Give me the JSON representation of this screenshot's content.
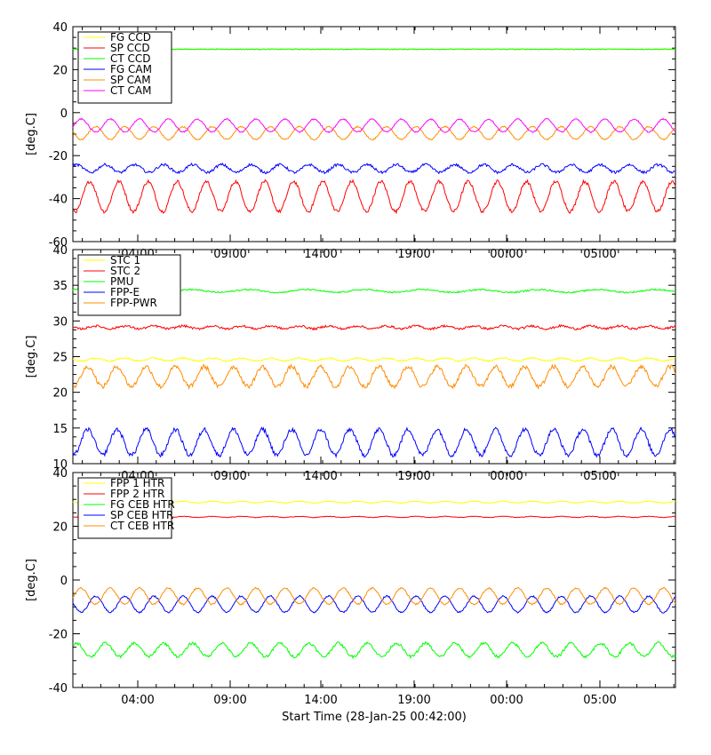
{
  "x_axis_title": "Start Time (28-Jan-25 00:42:00)",
  "chart_data": [
    {
      "type": "line",
      "ylabel": "[deg.C]",
      "ylim": [
        -60,
        40
      ],
      "yticks": [
        40,
        20,
        0,
        -20,
        -40,
        -60
      ],
      "xticks": [
        "04:00",
        "09:00",
        "14:00",
        "19:00",
        "00:00",
        "05:00"
      ],
      "legend_position": "top-left",
      "series": [
        {
          "name": "FG CCD",
          "color": "#ffff00",
          "mean": 29.5,
          "amp": 0,
          "period": 1.5,
          "phase": 0,
          "noise": 0.2
        },
        {
          "name": "SP CCD",
          "color": "#ff0000",
          "mean": -39,
          "amp": 7,
          "period": 1.5,
          "phase": 0.3,
          "noise": 0.8
        },
        {
          "name": "CT CCD",
          "color": "#00ff00",
          "mean": 29.5,
          "amp": 0,
          "period": 1.5,
          "phase": 0,
          "noise": 0.2
        },
        {
          "name": "FG CAM",
          "color": "#0000ff",
          "mean": -26,
          "amp": 1.8,
          "period": 1.5,
          "phase": 1.0,
          "noise": 0.6
        },
        {
          "name": "SP CAM",
          "color": "#ff8c00",
          "mean": -9.5,
          "amp": 3,
          "period": 1.5,
          "phase": 0.0,
          "noise": 0.3
        },
        {
          "name": "CT CAM",
          "color": "#ff00ff",
          "mean": -6,
          "amp": 3,
          "period": 1.5,
          "phase": 0.75,
          "noise": 0.3
        }
      ]
    },
    {
      "type": "line",
      "ylabel": "[deg.C]",
      "ylim": [
        10,
        40
      ],
      "yticks": [
        40,
        35,
        30,
        25,
        20,
        15,
        10
      ],
      "xticks": [
        "04:00",
        "09:00",
        "14:00",
        "19:00",
        "00:00",
        "05:00"
      ],
      "legend_position": "top-left",
      "series": [
        {
          "name": "STC 1",
          "color": "#ffff00",
          "mean": 24.6,
          "amp": 0.2,
          "period": 1.5,
          "phase": 0,
          "noise": 0.1
        },
        {
          "name": "STC 2",
          "color": "#ff0000",
          "mean": 29.1,
          "amp": 0.2,
          "period": 1.5,
          "phase": 0,
          "noise": 0.15
        },
        {
          "name": "PMU",
          "color": "#00ff00",
          "mean": 34.2,
          "amp": 0.2,
          "period": 3.0,
          "phase": 0,
          "noise": 0.1
        },
        {
          "name": "FPP-E",
          "color": "#0000ff",
          "mean": 13,
          "amp": 1.8,
          "period": 1.5,
          "phase": 0.4,
          "noise": 0.3
        },
        {
          "name": "FPP-PWR",
          "color": "#ff8c00",
          "mean": 22.2,
          "amp": 1.4,
          "period": 1.5,
          "phase": 0.4,
          "noise": 0.3
        }
      ]
    },
    {
      "type": "line",
      "ylabel": "[deg.C]",
      "ylim": [
        -40,
        40
      ],
      "yticks": [
        40,
        20,
        0,
        -20,
        -40
      ],
      "xticks": [
        "04:00",
        "09:00",
        "14:00",
        "19:00",
        "00:00",
        "05:00"
      ],
      "legend_position": "top-left",
      "series": [
        {
          "name": "FPP 1 HTR",
          "color": "#ffff00",
          "mean": 29,
          "amp": 0.3,
          "period": 1.5,
          "phase": 0,
          "noise": 0.1
        },
        {
          "name": "FPP 2 HTR",
          "color": "#ff0000",
          "mean": 23.5,
          "amp": 0.2,
          "period": 1.5,
          "phase": 0,
          "noise": 0.1
        },
        {
          "name": "FG CEB HTR",
          "color": "#00ff00",
          "mean": -26,
          "amp": 2.5,
          "period": 1.5,
          "phase": 1.0,
          "noise": 0.5
        },
        {
          "name": "SP CEB HTR",
          "color": "#0000ff",
          "mean": -9,
          "amp": 3,
          "period": 1.5,
          "phase": 0.0,
          "noise": 0.3
        },
        {
          "name": "CT CEB HTR",
          "color": "#ff8c00",
          "mean": -6,
          "amp": 3,
          "period": 1.5,
          "phase": 0.75,
          "noise": 0.3
        }
      ]
    }
  ]
}
